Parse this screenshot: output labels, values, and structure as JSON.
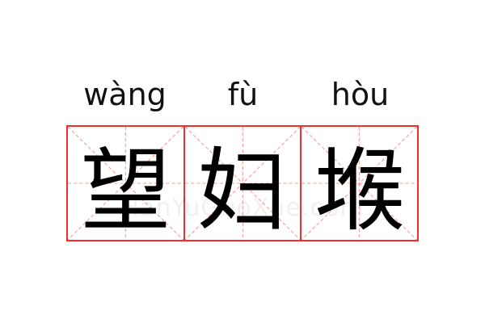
{
  "entries": [
    {
      "pinyin": "wàng",
      "char": "望"
    },
    {
      "pinyin": "fù",
      "char": "妇"
    },
    {
      "pinyin": "hòu",
      "char": "堠"
    }
  ],
  "watermark": "HanYuGuoXue.com",
  "colors": {
    "grid_border": "#f03030",
    "guide_lines": "#f5a0a0"
  }
}
